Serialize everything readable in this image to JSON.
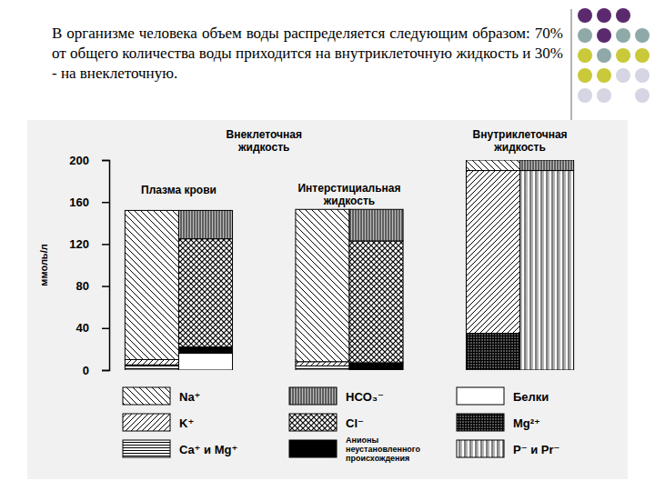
{
  "chart_data": {
    "type": "bar",
    "title": "В организме человека объем воды распределяется следующим образом: 70% от общего количества воды приходится на внутриклеточную жидкость и 30% - на внеклеточную.",
    "y_label": "ммоль/л",
    "annotations": [
      "Внеклеточная жидкость",
      "Внутриклеточная жидкость"
    ],
    "categories": [
      "Плазма крови",
      null,
      "Интерстициальная жидкость",
      null,
      null,
      null
    ],
    "series": [
      {
        "name": "Ca⁺ и Mg⁺",
        "color": "#000000",
        "values": [
          5,
          0,
          4,
          0,
          0,
          0
        ]
      },
      {
        "name": "Mg²⁺",
        "color": "#000000",
        "values": [
          0,
          0,
          0,
          0,
          35,
          0
        ]
      },
      {
        "name": "K⁺",
        "color": "#000000",
        "values": [
          5,
          0,
          4,
          0,
          155,
          0
        ]
      },
      {
        "name": "Na⁺",
        "color": "#000000",
        "values": [
          142,
          0,
          145,
          0,
          10,
          0
        ]
      },
      {
        "name": "Белки",
        "color": "#ffffff",
        "values": [
          0,
          16,
          0,
          0,
          0,
          0
        ]
      },
      {
        "name": "Анионы неустановленного происхождения",
        "color": "#000000",
        "values": [
          0,
          6,
          0,
          7,
          0,
          0
        ]
      },
      {
        "name": "Cl⁻",
        "color": "#000000",
        "values": [
          0,
          103,
          0,
          116,
          0,
          0
        ]
      },
      {
        "name": "P⁻ и Pr⁻",
        "color": "#000000",
        "values": [
          0,
          0,
          0,
          0,
          0,
          190
        ]
      },
      {
        "name": "HCO₃⁻",
        "color": "#000000",
        "values": [
          0,
          27,
          0,
          30,
          0,
          10
        ]
      }
    ],
    "ylim": [
      0,
      200
    ],
    "yticks": [
      0,
      40,
      80,
      120,
      160,
      200
    ],
    "stacked": true,
    "grid": false,
    "legend": "bottom",
    "data_labels": false
  }
}
